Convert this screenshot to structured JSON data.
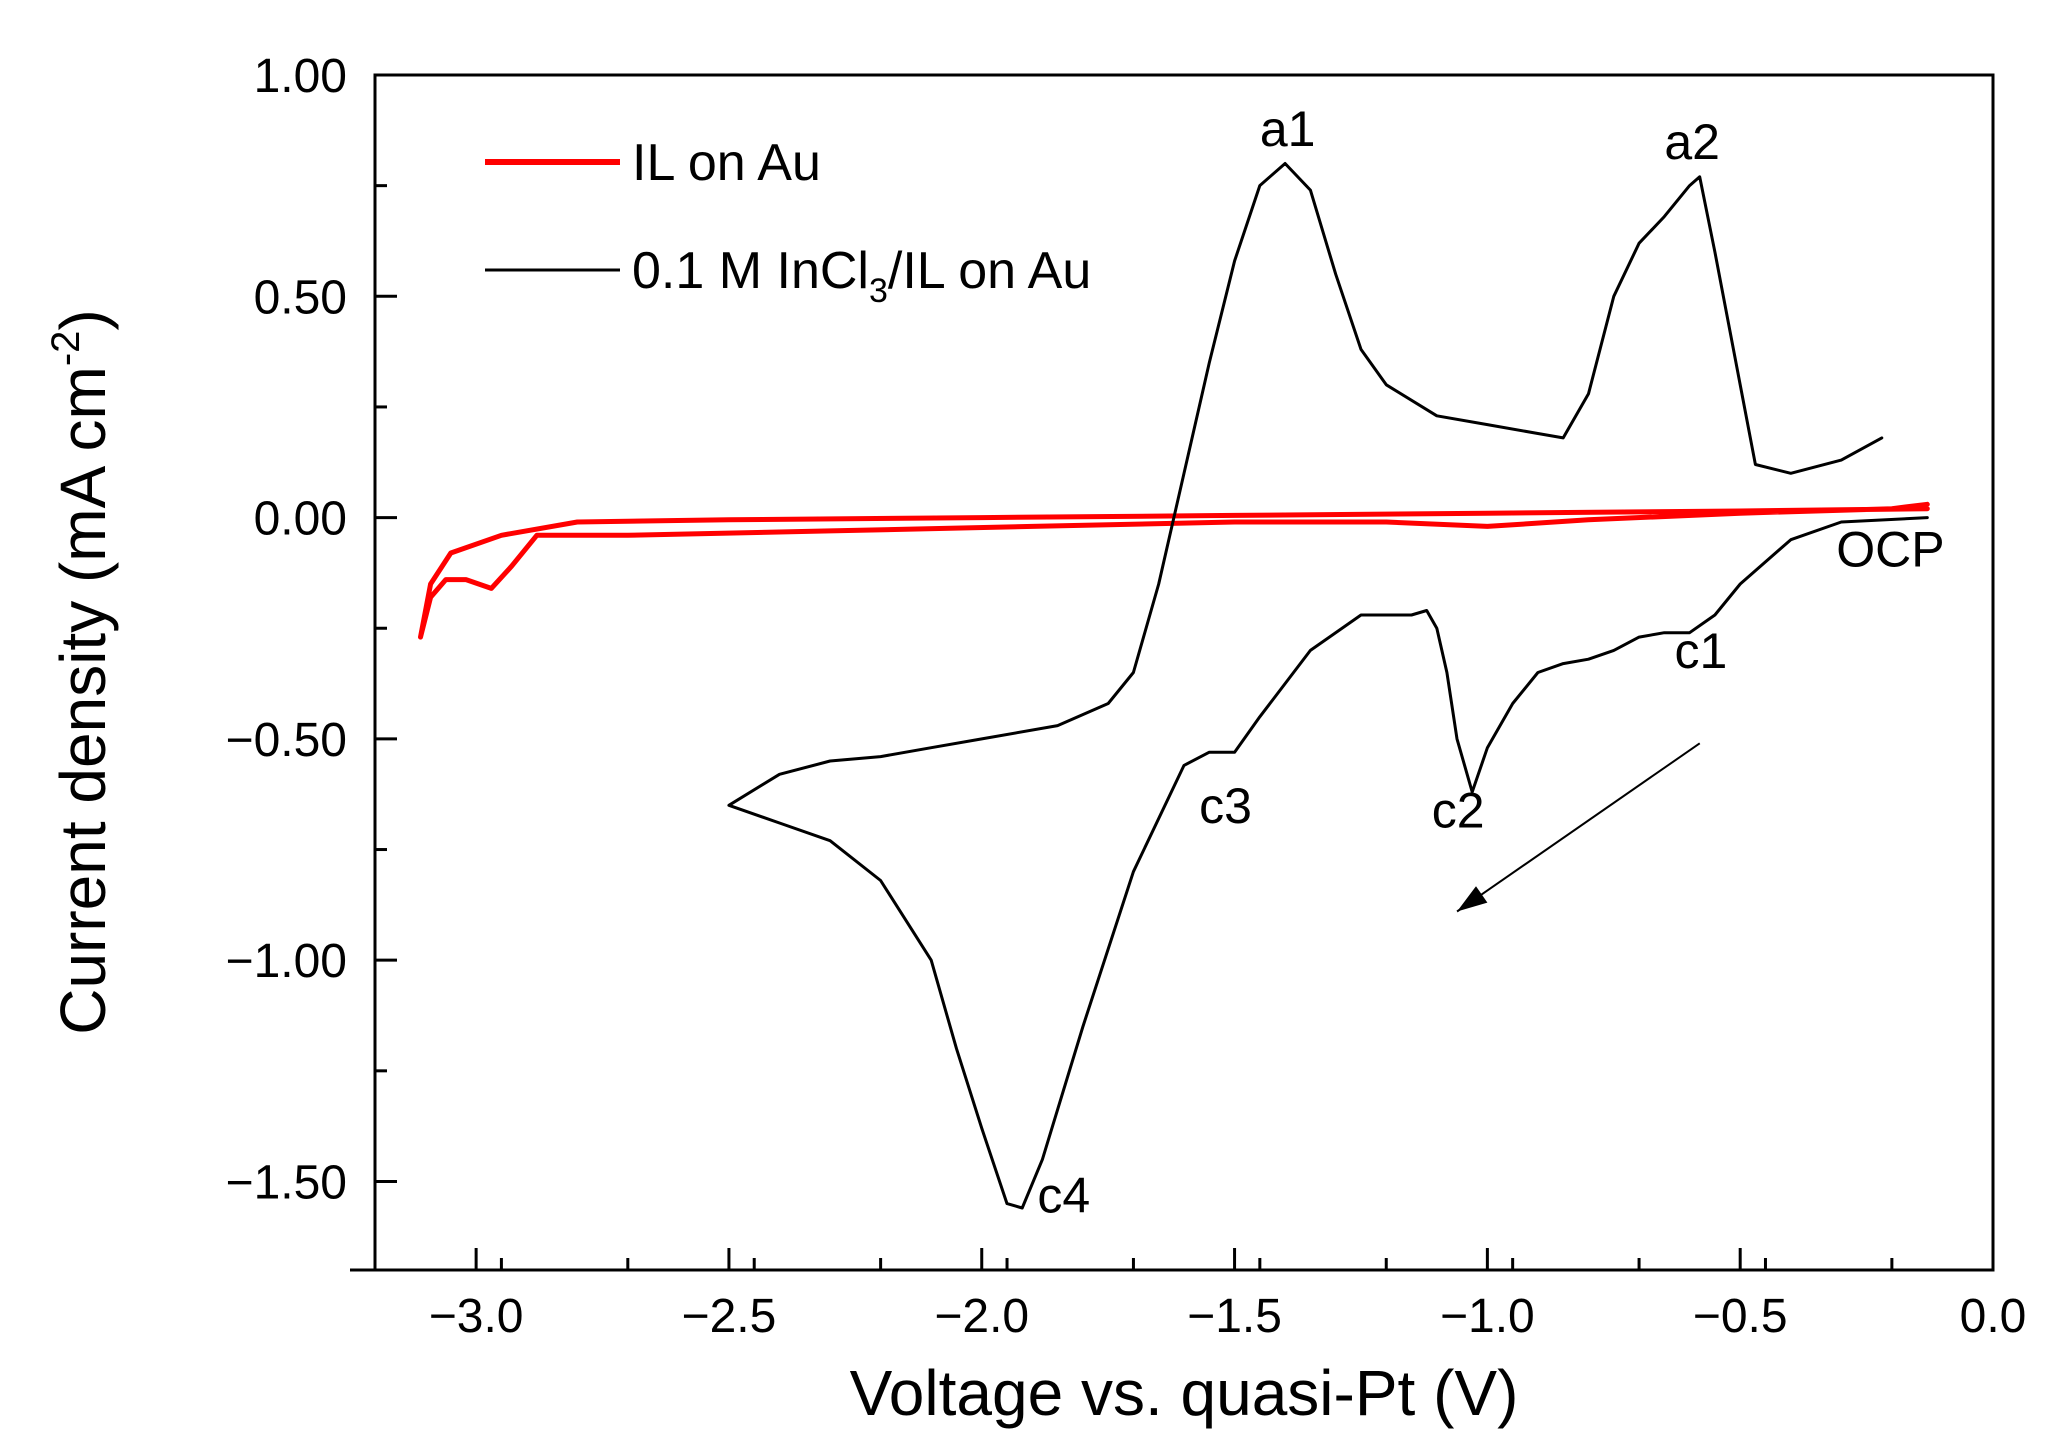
{
  "chart_data": {
    "type": "line",
    "title": "",
    "xlabel": "Voltage vs. quasi-Pt  (V)",
    "ylabel": {
      "main": "Current density (mA cm",
      "sup": "-2",
      "close": ")"
    },
    "xlim": [
      -3.2,
      0.0
    ],
    "ylim": [
      -1.7,
      1.0
    ],
    "x_ticks": [
      -3.0,
      -2.5,
      -2.0,
      -1.5,
      -1.0,
      -0.5,
      0.0
    ],
    "x_tick_labels": [
      "−3.0",
      "−2.5",
      "−2.0",
      "−1.5",
      "−1.0",
      "−0.5",
      "0.0"
    ],
    "y_ticks": [
      1.0,
      0.5,
      0.0,
      -0.5,
      -1.0,
      -1.5
    ],
    "y_tick_labels": [
      "1.00",
      "0.50",
      "0.00",
      "−0.50",
      "−1.00",
      "−1.50"
    ],
    "legend": [
      {
        "name": "IL on Au",
        "color": "#ff0000"
      },
      {
        "name_parts": [
          "0.1 M InCl",
          "3",
          "/IL on Au"
        ],
        "color": "#000000"
      }
    ],
    "series": [
      {
        "name": "IL on Au",
        "color": "#ff0000",
        "points": [
          [
            -0.13,
            0.02
          ],
          [
            -0.5,
            0.015
          ],
          [
            -1.0,
            0.01
          ],
          [
            -1.5,
            0.005
          ],
          [
            -2.0,
            0.0
          ],
          [
            -2.5,
            -0.005
          ],
          [
            -2.8,
            -0.01
          ],
          [
            -2.95,
            -0.04
          ],
          [
            -3.05,
            -0.08
          ],
          [
            -3.09,
            -0.15
          ],
          [
            -3.11,
            -0.27
          ],
          [
            -3.09,
            -0.18
          ],
          [
            -3.06,
            -0.14
          ],
          [
            -3.02,
            -0.14
          ],
          [
            -2.97,
            -0.16
          ],
          [
            -2.93,
            -0.11
          ],
          [
            -2.88,
            -0.04
          ],
          [
            -2.7,
            -0.04
          ],
          [
            -2.3,
            -0.03
          ],
          [
            -1.9,
            -0.02
          ],
          [
            -1.5,
            -0.01
          ],
          [
            -1.2,
            -0.01
          ],
          [
            -1.0,
            -0.02
          ],
          [
            -0.8,
            -0.005
          ],
          [
            -0.5,
            0.01
          ],
          [
            -0.2,
            0.02
          ],
          [
            -0.13,
            0.03
          ]
        ]
      },
      {
        "name": "0.1 M InCl3/IL on Au",
        "color": "#000000",
        "points": [
          [
            -0.13,
            0.0
          ],
          [
            -0.3,
            -0.01
          ],
          [
            -0.4,
            -0.05
          ],
          [
            -0.5,
            -0.15
          ],
          [
            -0.55,
            -0.22
          ],
          [
            -0.6,
            -0.26
          ],
          [
            -0.65,
            -0.26
          ],
          [
            -0.7,
            -0.27
          ],
          [
            -0.75,
            -0.3
          ],
          [
            -0.8,
            -0.32
          ],
          [
            -0.85,
            -0.33
          ],
          [
            -0.9,
            -0.35
          ],
          [
            -0.95,
            -0.42
          ],
          [
            -1.0,
            -0.52
          ],
          [
            -1.03,
            -0.62
          ],
          [
            -1.06,
            -0.5
          ],
          [
            -1.08,
            -0.35
          ],
          [
            -1.1,
            -0.25
          ],
          [
            -1.12,
            -0.21
          ],
          [
            -1.15,
            -0.22
          ],
          [
            -1.25,
            -0.22
          ],
          [
            -1.35,
            -0.3
          ],
          [
            -1.45,
            -0.45
          ],
          [
            -1.5,
            -0.53
          ],
          [
            -1.55,
            -0.53
          ],
          [
            -1.6,
            -0.56
          ],
          [
            -1.7,
            -0.8
          ],
          [
            -1.8,
            -1.15
          ],
          [
            -1.88,
            -1.45
          ],
          [
            -1.92,
            -1.56
          ],
          [
            -1.95,
            -1.55
          ],
          [
            -2.0,
            -1.38
          ],
          [
            -2.05,
            -1.2
          ],
          [
            -2.1,
            -1.0
          ],
          [
            -2.2,
            -0.82
          ],
          [
            -2.3,
            -0.73
          ],
          [
            -2.4,
            -0.69
          ],
          [
            -2.5,
            -0.65
          ],
          [
            -2.4,
            -0.58
          ],
          [
            -2.3,
            -0.55
          ],
          [
            -2.2,
            -0.54
          ],
          [
            -2.1,
            -0.52
          ],
          [
            -2.0,
            -0.5
          ],
          [
            -1.85,
            -0.47
          ],
          [
            -1.75,
            -0.42
          ],
          [
            -1.7,
            -0.35
          ],
          [
            -1.65,
            -0.15
          ],
          [
            -1.6,
            0.1
          ],
          [
            -1.55,
            0.35
          ],
          [
            -1.5,
            0.58
          ],
          [
            -1.45,
            0.75
          ],
          [
            -1.4,
            0.8
          ],
          [
            -1.35,
            0.74
          ],
          [
            -1.3,
            0.55
          ],
          [
            -1.25,
            0.38
          ],
          [
            -1.2,
            0.3
          ],
          [
            -1.1,
            0.23
          ],
          [
            -1.0,
            0.21
          ],
          [
            -0.9,
            0.19
          ],
          [
            -0.85,
            0.18
          ],
          [
            -0.8,
            0.28
          ],
          [
            -0.75,
            0.5
          ],
          [
            -0.7,
            0.62
          ],
          [
            -0.65,
            0.68
          ],
          [
            -0.6,
            0.75
          ],
          [
            -0.58,
            0.77
          ],
          [
            -0.55,
            0.6
          ],
          [
            -0.5,
            0.3
          ],
          [
            -0.47,
            0.12
          ],
          [
            -0.4,
            0.1
          ],
          [
            -0.3,
            0.13
          ],
          [
            -0.22,
            0.18
          ]
        ]
      }
    ],
    "annotations": [
      {
        "text": "a1",
        "x": -1.45,
        "y": 0.84
      },
      {
        "text": "a2",
        "x": -0.65,
        "y": 0.81
      },
      {
        "text": "OCP",
        "x": -0.31,
        "y": -0.11
      },
      {
        "text": "c1",
        "x": -0.63,
        "y": -0.34
      },
      {
        "text": "c2",
        "x": -1.11,
        "y": -0.7
      },
      {
        "text": "c3",
        "x": -1.57,
        "y": -0.69
      },
      {
        "text": "c4",
        "x": -1.89,
        "y": -1.57
      }
    ],
    "arrow": {
      "from": [
        -0.58,
        -0.51
      ],
      "to": [
        -1.06,
        -0.89
      ]
    }
  }
}
